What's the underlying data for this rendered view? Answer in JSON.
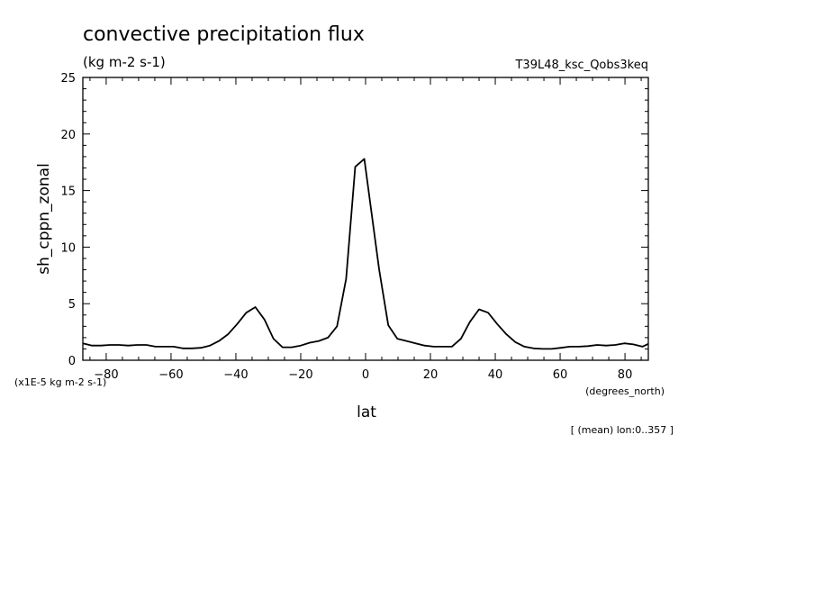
{
  "chart_data": {
    "type": "line",
    "title": "convective precipitation flux",
    "subtitle": "(kg m-2 s-1)",
    "run_label": "T39L48_ksc_Qobs3keq",
    "ylabel": "sh_cppn_zonal",
    "xlabel": "lat",
    "x_unit_label": "(degrees_north)",
    "y_scale_label": "(x1E-5 kg m-2 s-1)",
    "footnote": "[ (mean) lon:0..357 ]",
    "xlim": [
      -87.2,
      87.2
    ],
    "ylim": [
      0,
      25
    ],
    "x_ticks": [
      -80,
      -60,
      -40,
      -20,
      0,
      20,
      40,
      60,
      80
    ],
    "y_ticks": [
      0,
      5,
      10,
      15,
      20,
      25
    ],
    "grid": false,
    "series": [
      {
        "x": [
          -87.2,
          -84.4,
          -81.6,
          -78.8,
          -76.0,
          -73.2,
          -70.4,
          -67.6,
          -64.8,
          -62.0,
          -59.2,
          -56.4,
          -53.6,
          -50.8,
          -48.0,
          -45.2,
          -42.4,
          -39.6,
          -36.8,
          -34.0,
          -31.2,
          -28.4,
          -25.6,
          -22.8,
          -20.0,
          -17.2,
          -14.4,
          -11.6,
          -8.8,
          -6.0,
          -3.2,
          -0.4,
          1.4,
          4.2,
          7.0,
          9.8,
          12.6,
          15.4,
          18.2,
          21.0,
          23.8,
          26.6,
          29.4,
          32.2,
          35.0,
          37.8,
          40.6,
          43.4,
          46.2,
          49.0,
          51.8,
          54.6,
          57.4,
          60.2,
          63.0,
          65.8,
          68.6,
          71.4,
          74.2,
          77.0,
          79.8,
          82.6,
          85.4,
          87.2
        ],
        "y": [
          1.5,
          1.3,
          1.3,
          1.35,
          1.35,
          1.3,
          1.35,
          1.35,
          1.2,
          1.2,
          1.2,
          1.05,
          1.05,
          1.1,
          1.3,
          1.7,
          2.3,
          3.2,
          4.2,
          4.7,
          3.6,
          1.9,
          1.15,
          1.15,
          1.3,
          1.55,
          1.7,
          2.0,
          3.0,
          7.2,
          17.1,
          17.8,
          14.0,
          8.0,
          3.1,
          1.9,
          1.7,
          1.5,
          1.3,
          1.2,
          1.2,
          1.2,
          1.9,
          3.4,
          4.5,
          4.2,
          3.2,
          2.3,
          1.6,
          1.2,
          1.05,
          1.0,
          1.0,
          1.1,
          1.2,
          1.2,
          1.25,
          1.35,
          1.3,
          1.35,
          1.5,
          1.4,
          1.2,
          1.45
        ]
      }
    ]
  }
}
